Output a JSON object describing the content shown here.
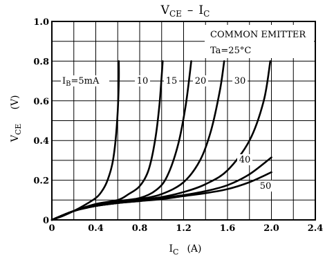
{
  "chart_data": {
    "type": "line",
    "title": "VCE – IC",
    "title_parts": {
      "main1": "V",
      "sub1": "CE",
      "dash": "–",
      "main2": "I",
      "sub2": "C"
    },
    "xlabel": {
      "main": "I",
      "sub": "C",
      "unit": "(A)"
    },
    "ylabel": {
      "main": "V",
      "sub": "CE",
      "unit": "(V)"
    },
    "xlim": [
      0,
      2.4
    ],
    "ylim": [
      0,
      1.0
    ],
    "x_ticks": [
      0,
      0.4,
      0.8,
      1.2,
      1.6,
      2.0,
      2.4
    ],
    "x_tick_labels": [
      "0",
      "0.4",
      "0.8",
      "1.2",
      "1.6",
      "2.0",
      "2.4"
    ],
    "y_ticks": [
      0,
      0.2,
      0.4,
      0.6,
      0.8,
      1.0
    ],
    "y_tick_labels": [
      "0",
      "0.2",
      "0.4",
      "0.6",
      "0.8",
      "1.0"
    ],
    "grid": true,
    "annotations": [
      "COMMON EMITTER",
      "Ta=25°C"
    ],
    "series": [
      {
        "name": "IB=5mA",
        "label": "IB=5mA",
        "points": [
          [
            0,
            0
          ],
          [
            0.1,
            0.02
          ],
          [
            0.2,
            0.045
          ],
          [
            0.3,
            0.075
          ],
          [
            0.4,
            0.11
          ],
          [
            0.45,
            0.14
          ],
          [
            0.5,
            0.19
          ],
          [
            0.55,
            0.28
          ],
          [
            0.58,
            0.4
          ],
          [
            0.6,
            0.55
          ],
          [
            0.61,
            0.7
          ],
          [
            0.61,
            0.8
          ]
        ]
      },
      {
        "name": "10",
        "label": "10",
        "points": [
          [
            0,
            0
          ],
          [
            0.2,
            0.045
          ],
          [
            0.4,
            0.08
          ],
          [
            0.6,
            0.1
          ],
          [
            0.7,
            0.13
          ],
          [
            0.8,
            0.17
          ],
          [
            0.88,
            0.25
          ],
          [
            0.94,
            0.4
          ],
          [
            0.98,
            0.58
          ],
          [
            1.01,
            0.8
          ]
        ]
      },
      {
        "name": "15",
        "label": "15",
        "points": [
          [
            0,
            0
          ],
          [
            0.2,
            0.045
          ],
          [
            0.4,
            0.075
          ],
          [
            0.6,
            0.095
          ],
          [
            0.8,
            0.11
          ],
          [
            0.95,
            0.15
          ],
          [
            1.05,
            0.22
          ],
          [
            1.15,
            0.38
          ],
          [
            1.22,
            0.58
          ],
          [
            1.27,
            0.8
          ]
        ]
      },
      {
        "name": "20",
        "label": "20",
        "points": [
          [
            0,
            0
          ],
          [
            0.2,
            0.045
          ],
          [
            0.4,
            0.075
          ],
          [
            0.6,
            0.09
          ],
          [
            0.8,
            0.105
          ],
          [
            1.0,
            0.13
          ],
          [
            1.2,
            0.19
          ],
          [
            1.35,
            0.3
          ],
          [
            1.45,
            0.45
          ],
          [
            1.53,
            0.65
          ],
          [
            1.57,
            0.8
          ]
        ]
      },
      {
        "name": "30",
        "label": "30",
        "points": [
          [
            0,
            0
          ],
          [
            0.2,
            0.045
          ],
          [
            0.4,
            0.07
          ],
          [
            0.6,
            0.085
          ],
          [
            0.8,
            0.1
          ],
          [
            1.0,
            0.115
          ],
          [
            1.2,
            0.14
          ],
          [
            1.4,
            0.18
          ],
          [
            1.6,
            0.25
          ],
          [
            1.8,
            0.4
          ],
          [
            1.93,
            0.6
          ],
          [
            1.99,
            0.8
          ]
        ]
      },
      {
        "name": "40",
        "label": "40",
        "points": [
          [
            0,
            0
          ],
          [
            0.2,
            0.045
          ],
          [
            0.4,
            0.07
          ],
          [
            0.6,
            0.085
          ],
          [
            0.8,
            0.095
          ],
          [
            1.0,
            0.11
          ],
          [
            1.2,
            0.125
          ],
          [
            1.4,
            0.145
          ],
          [
            1.6,
            0.175
          ],
          [
            1.8,
            0.23
          ],
          [
            2.0,
            0.315
          ]
        ]
      },
      {
        "name": "50",
        "label": "50",
        "points": [
          [
            0,
            0
          ],
          [
            0.2,
            0.045
          ],
          [
            0.4,
            0.07
          ],
          [
            0.6,
            0.085
          ],
          [
            0.8,
            0.095
          ],
          [
            1.0,
            0.105
          ],
          [
            1.2,
            0.12
          ],
          [
            1.4,
            0.135
          ],
          [
            1.6,
            0.155
          ],
          [
            1.8,
            0.19
          ],
          [
            2.0,
            0.24
          ]
        ]
      }
    ]
  }
}
